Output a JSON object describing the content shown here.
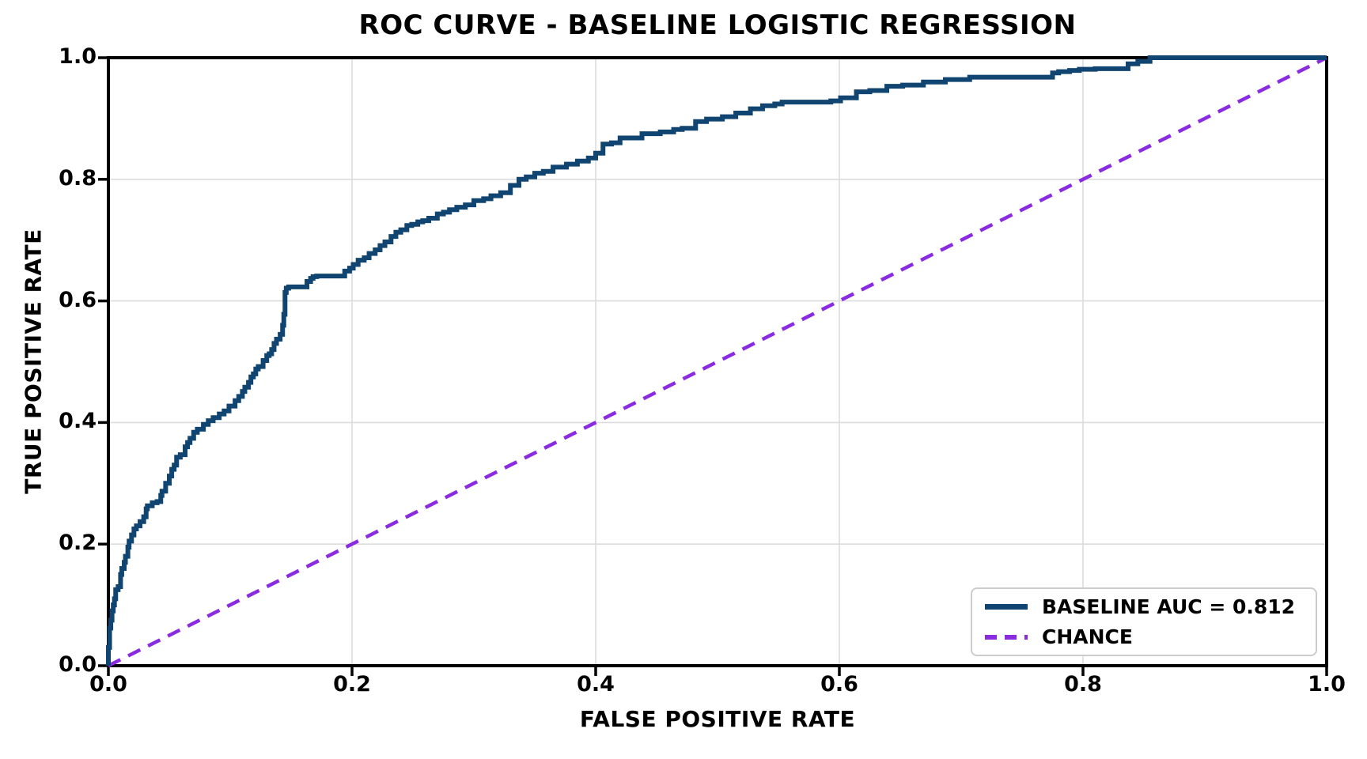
{
  "chart_data": {
    "type": "line",
    "title": "ROC CURVE - BASELINE LOGISTIC REGRESSION",
    "xlabel": "FALSE POSITIVE RATE",
    "ylabel": "TRUE POSITIVE RATE",
    "xlim": [
      0.0,
      1.0
    ],
    "ylim": [
      0.0,
      1.0
    ],
    "xticks": [
      "0.0",
      "0.2",
      "0.4",
      "0.6",
      "0.8",
      "1.0"
    ],
    "yticks": [
      "0.0",
      "0.2",
      "0.4",
      "0.6",
      "0.8",
      "1.0"
    ],
    "grid": true,
    "grid_color": "#dcdcdc",
    "axis_color": "#000000",
    "legend_position": "lower right",
    "auc": 0.812,
    "series": [
      {
        "name": "BASELINE AUC = 0.812",
        "color": "#114571",
        "style": "solid",
        "interpolation": "step-before",
        "points": [
          [
            0.0,
            0.0
          ],
          [
            0.001,
            0.03
          ],
          [
            0.001,
            0.05
          ],
          [
            0.002,
            0.062
          ],
          [
            0.003,
            0.075
          ],
          [
            0.004,
            0.09
          ],
          [
            0.005,
            0.1
          ],
          [
            0.006,
            0.11
          ],
          [
            0.008,
            0.125
          ],
          [
            0.01,
            0.13
          ],
          [
            0.011,
            0.15
          ],
          [
            0.013,
            0.16
          ],
          [
            0.014,
            0.17
          ],
          [
            0.016,
            0.18
          ],
          [
            0.017,
            0.195
          ],
          [
            0.019,
            0.205
          ],
          [
            0.021,
            0.215
          ],
          [
            0.023,
            0.225
          ],
          [
            0.026,
            0.23
          ],
          [
            0.029,
            0.237
          ],
          [
            0.031,
            0.245
          ],
          [
            0.032,
            0.258
          ],
          [
            0.036,
            0.263
          ],
          [
            0.04,
            0.268
          ],
          [
            0.043,
            0.27
          ],
          [
            0.044,
            0.28
          ],
          [
            0.047,
            0.287
          ],
          [
            0.05,
            0.3
          ],
          [
            0.052,
            0.312
          ],
          [
            0.054,
            0.323
          ],
          [
            0.056,
            0.33
          ],
          [
            0.059,
            0.343
          ],
          [
            0.063,
            0.347
          ],
          [
            0.065,
            0.36
          ],
          [
            0.067,
            0.367
          ],
          [
            0.07,
            0.374
          ],
          [
            0.073,
            0.384
          ],
          [
            0.078,
            0.389
          ],
          [
            0.082,
            0.397
          ],
          [
            0.086,
            0.403
          ],
          [
            0.091,
            0.408
          ],
          [
            0.095,
            0.414
          ],
          [
            0.099,
            0.419
          ],
          [
            0.104,
            0.427
          ],
          [
            0.107,
            0.436
          ],
          [
            0.11,
            0.443
          ],
          [
            0.112,
            0.451
          ],
          [
            0.115,
            0.458
          ],
          [
            0.117,
            0.466
          ],
          [
            0.119,
            0.475
          ],
          [
            0.121,
            0.48
          ],
          [
            0.123,
            0.488
          ],
          [
            0.127,
            0.492
          ],
          [
            0.13,
            0.502
          ],
          [
            0.132,
            0.51
          ],
          [
            0.134,
            0.513
          ],
          [
            0.136,
            0.52
          ],
          [
            0.138,
            0.53
          ],
          [
            0.141,
            0.537
          ],
          [
            0.143,
            0.545
          ],
          [
            0.144,
            0.56
          ],
          [
            0.145,
            0.578
          ],
          [
            0.145,
            0.6
          ],
          [
            0.146,
            0.614
          ],
          [
            0.148,
            0.621
          ],
          [
            0.15,
            0.623
          ],
          [
            0.163,
            0.623
          ],
          [
            0.166,
            0.632
          ],
          [
            0.168,
            0.637
          ],
          [
            0.171,
            0.64
          ],
          [
            0.194,
            0.641
          ],
          [
            0.198,
            0.649
          ],
          [
            0.201,
            0.654
          ],
          [
            0.205,
            0.66
          ],
          [
            0.21,
            0.667
          ],
          [
            0.214,
            0.671
          ],
          [
            0.219,
            0.678
          ],
          [
            0.223,
            0.684
          ],
          [
            0.227,
            0.691
          ],
          [
            0.232,
            0.697
          ],
          [
            0.236,
            0.706
          ],
          [
            0.24,
            0.713
          ],
          [
            0.245,
            0.717
          ],
          [
            0.249,
            0.724
          ],
          [
            0.254,
            0.726
          ],
          [
            0.258,
            0.73
          ],
          [
            0.263,
            0.732
          ],
          [
            0.27,
            0.736
          ],
          [
            0.275,
            0.743
          ],
          [
            0.28,
            0.746
          ],
          [
            0.286,
            0.75
          ],
          [
            0.293,
            0.754
          ],
          [
            0.3,
            0.758
          ],
          [
            0.308,
            0.765
          ],
          [
            0.314,
            0.768
          ],
          [
            0.322,
            0.773
          ],
          [
            0.33,
            0.778
          ],
          [
            0.337,
            0.79
          ],
          [
            0.343,
            0.8
          ],
          [
            0.35,
            0.804
          ],
          [
            0.357,
            0.81
          ],
          [
            0.365,
            0.813
          ],
          [
            0.376,
            0.82
          ],
          [
            0.385,
            0.825
          ],
          [
            0.394,
            0.83
          ],
          [
            0.4,
            0.835
          ],
          [
            0.406,
            0.843
          ],
          [
            0.413,
            0.858
          ],
          [
            0.42,
            0.86
          ],
          [
            0.438,
            0.868
          ],
          [
            0.453,
            0.875
          ],
          [
            0.464,
            0.878
          ],
          [
            0.471,
            0.882
          ],
          [
            0.482,
            0.884
          ],
          [
            0.491,
            0.895
          ],
          [
            0.504,
            0.899
          ],
          [
            0.515,
            0.903
          ],
          [
            0.527,
            0.909
          ],
          [
            0.537,
            0.916
          ],
          [
            0.547,
            0.921
          ],
          [
            0.553,
            0.924
          ],
          [
            0.559,
            0.927
          ],
          [
            0.593,
            0.927
          ],
          [
            0.601,
            0.929
          ],
          [
            0.614,
            0.934
          ],
          [
            0.625,
            0.944
          ],
          [
            0.639,
            0.946
          ],
          [
            0.652,
            0.953
          ],
          [
            0.669,
            0.955
          ],
          [
            0.687,
            0.96
          ],
          [
            0.707,
            0.964
          ],
          [
            0.715,
            0.968
          ],
          [
            0.775,
            0.968
          ],
          [
            0.78,
            0.975
          ],
          [
            0.789,
            0.977
          ],
          [
            0.797,
            0.979
          ],
          [
            0.81,
            0.981
          ],
          [
            0.837,
            0.982
          ],
          [
            0.845,
            0.99
          ],
          [
            0.855,
            0.994
          ],
          [
            0.863,
            1.0
          ],
          [
            1.0,
            1.0
          ]
        ]
      },
      {
        "name": "CHANCE",
        "color": "#8a2be2",
        "style": "dashed",
        "interpolation": "linear",
        "points": [
          [
            0.0,
            0.0
          ],
          [
            1.0,
            1.0
          ]
        ]
      }
    ]
  }
}
